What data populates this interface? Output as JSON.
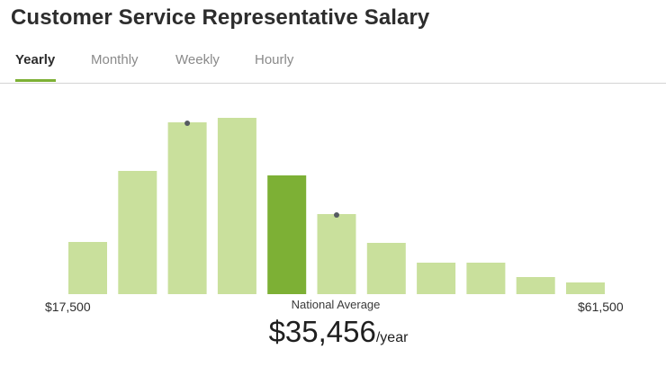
{
  "title": "Customer Service Representative Salary",
  "tabs": [
    {
      "label": "Yearly",
      "active": true
    },
    {
      "label": "Monthly",
      "active": false
    },
    {
      "label": "Weekly",
      "active": false
    },
    {
      "label": "Hourly",
      "active": false
    }
  ],
  "range": {
    "min_label": "$17,500",
    "max_label": "$61,500"
  },
  "national_average": {
    "label": "National Average",
    "amount": "$35,456",
    "unit": "/year"
  },
  "colors": {
    "bar": "#c9e09c",
    "bar_highlight": "#7db035",
    "marker": "#555b61",
    "accent": "#7db035"
  },
  "chart_data": {
    "type": "bar",
    "title": "",
    "xlabel": "",
    "ylabel": "",
    "x_range": [
      17500,
      61500
    ],
    "bins": 11,
    "values": [
      58,
      137,
      191,
      196,
      132,
      89,
      57,
      35,
      35,
      19,
      13
    ],
    "highlight_index": 4,
    "marker_indices": [
      2,
      5
    ]
  }
}
